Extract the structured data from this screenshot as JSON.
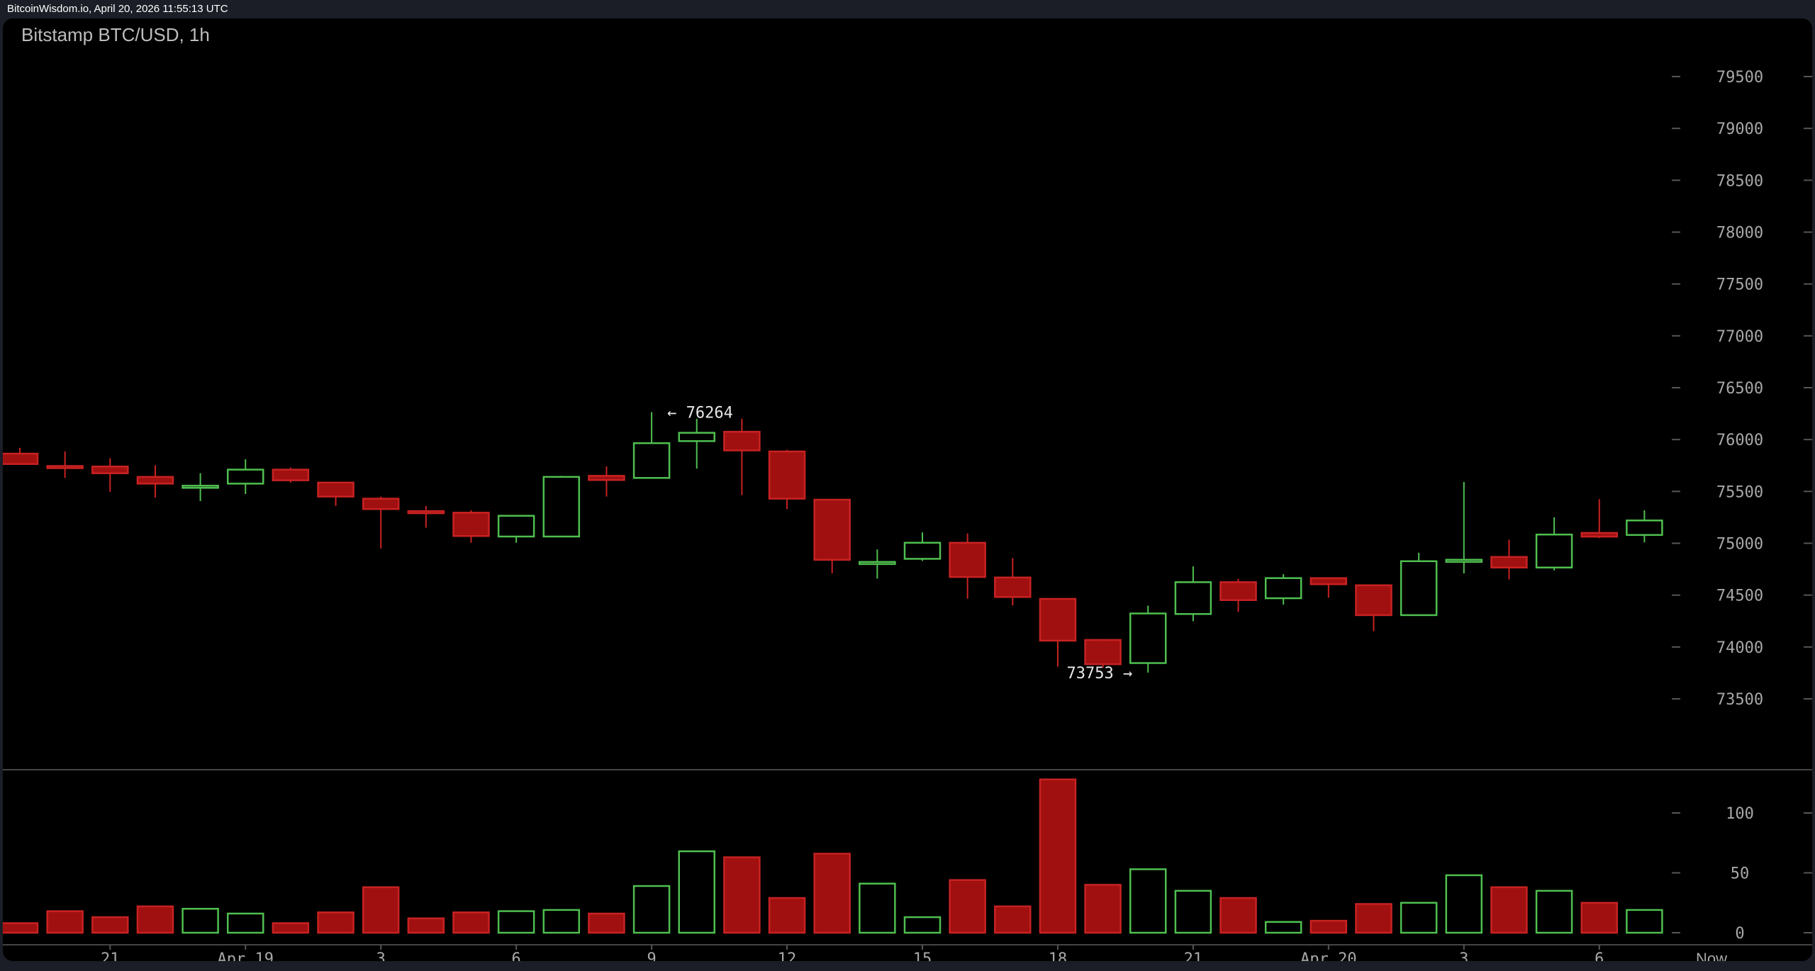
{
  "header": {
    "source": "BitcoinWisdom.io, April 20, 2026 11:55:13 UTC"
  },
  "chart_data": {
    "type": "candlestick",
    "title": "Bitstamp BTC/USD, 1h",
    "colors": {
      "up": "#4fbf4f",
      "down": "#a01010",
      "down_border": "#c82222",
      "axis_text": "#a8a8a8"
    },
    "price_ticks": [
      73500,
      74000,
      74500,
      75000,
      75500,
      76000,
      76500,
      77000,
      77500,
      78000,
      78500,
      79000,
      79500
    ],
    "price_range": [
      73000,
      79800
    ],
    "volume_ticks": [
      0,
      50,
      100
    ],
    "x_ticks": [
      {
        "index": 3,
        "label": "21"
      },
      {
        "index": 6,
        "label": "Apr 19"
      },
      {
        "index": 9,
        "label": "3"
      },
      {
        "index": 12,
        "label": "6"
      },
      {
        "index": 15,
        "label": "9"
      },
      {
        "index": 18,
        "label": "12"
      },
      {
        "index": 21,
        "label": "15"
      },
      {
        "index": 24,
        "label": "18"
      },
      {
        "index": 27,
        "label": "21"
      },
      {
        "index": 30,
        "label": "Apr 20"
      },
      {
        "index": 33,
        "label": "3"
      },
      {
        "index": 36,
        "label": "6"
      }
    ],
    "now_label": "Now",
    "annotations": {
      "high": {
        "index": 14,
        "value": 76264,
        "text": "← 76264"
      },
      "low": {
        "index": 25,
        "value": 73753,
        "text": "73753 →"
      }
    },
    "candles": [
      [
        75864,
        75920,
        75760,
        75764,
        8
      ],
      [
        75745,
        75886,
        75630,
        75735,
        18
      ],
      [
        75740,
        75820,
        75496,
        75675,
        13
      ],
      [
        75640,
        75753,
        75440,
        75575,
        22
      ],
      [
        75545,
        75675,
        75407,
        75555,
        20
      ],
      [
        75575,
        75810,
        75475,
        75710,
        16
      ],
      [
        75710,
        75730,
        75585,
        75607,
        8
      ],
      [
        75585,
        75590,
        75360,
        75450,
        17
      ],
      [
        75430,
        75450,
        74950,
        75330,
        38
      ],
      [
        75310,
        75360,
        75150,
        75300,
        12
      ],
      [
        75295,
        75318,
        75005,
        75070,
        17
      ],
      [
        75065,
        75270,
        75005,
        75265,
        18
      ],
      [
        75065,
        75650,
        75060,
        75640,
        19
      ],
      [
        75650,
        75740,
        75450,
        75610,
        16
      ],
      [
        75630,
        76264,
        75625,
        75965,
        39
      ],
      [
        75985,
        76200,
        75720,
        76065,
        68
      ],
      [
        76075,
        76200,
        75465,
        75895,
        63
      ],
      [
        75885,
        75900,
        75330,
        75430,
        29
      ],
      [
        75420,
        75430,
        74710,
        74840,
        66
      ],
      [
        74810,
        74940,
        74660,
        74820,
        41
      ],
      [
        74850,
        75105,
        74830,
        75005,
        13
      ],
      [
        75005,
        75095,
        74465,
        74675,
        44
      ],
      [
        74670,
        74857,
        74400,
        74482,
        22
      ],
      [
        74464,
        74470,
        73811,
        74061,
        128
      ],
      [
        74068,
        74077,
        73800,
        73834,
        40
      ],
      [
        73845,
        74398,
        73753,
        74323,
        53
      ],
      [
        74318,
        74777,
        74248,
        74625,
        35
      ],
      [
        74625,
        74657,
        74339,
        74452,
        29
      ],
      [
        74470,
        74702,
        74409,
        74664,
        9
      ],
      [
        74664,
        74664,
        74475,
        74605,
        10
      ],
      [
        74595,
        74600,
        74152,
        74307,
        24
      ],
      [
        74307,
        74909,
        74300,
        74827,
        25
      ],
      [
        74835,
        75591,
        74709,
        74841,
        48
      ],
      [
        74868,
        75034,
        74652,
        74766,
        38
      ],
      [
        74766,
        75250,
        74739,
        75084,
        35
      ],
      [
        75100,
        75425,
        75050,
        75064,
        25
      ],
      [
        75080,
        75318,
        75009,
        75220,
        19
      ]
    ],
    "candle_fields": [
      "open",
      "high",
      "low",
      "close",
      "volume"
    ]
  }
}
